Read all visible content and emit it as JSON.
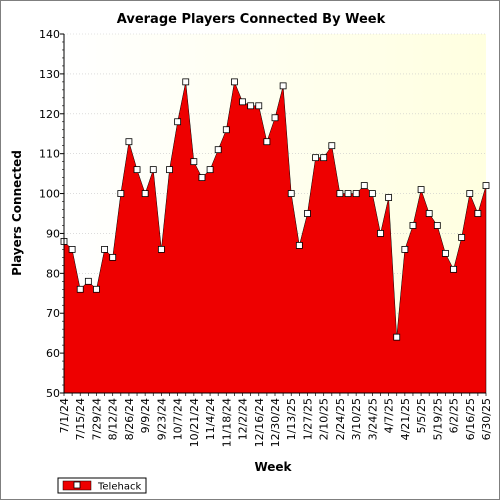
{
  "chart_data": {
    "type": "area",
    "title": "Average Players Connected By Week",
    "xlabel": "Week",
    "ylabel": "Players Connected",
    "ylim": [
      50,
      140
    ],
    "yticks": [
      50,
      60,
      70,
      80,
      90,
      100,
      110,
      120,
      130,
      140
    ],
    "grid": true,
    "legend_position": "bottom-left",
    "x": [
      "7/1/24",
      "7/8/24",
      "7/15/24",
      "7/22/24",
      "7/29/24",
      "8/5/24",
      "8/12/24",
      "8/19/24",
      "8/26/24",
      "9/2/24",
      "9/9/24",
      "9/16/24",
      "9/23/24",
      "9/30/24",
      "10/7/24",
      "10/14/24",
      "10/21/24",
      "10/28/24",
      "11/4/24",
      "11/11/24",
      "11/18/24",
      "11/25/24",
      "12/2/24",
      "12/9/24",
      "12/16/24",
      "12/23/24",
      "12/30/24",
      "1/6/25",
      "1/13/25",
      "1/20/25",
      "1/27/25",
      "2/3/25",
      "2/10/25",
      "2/17/25",
      "2/24/25",
      "3/3/25",
      "3/10/25",
      "3/17/25",
      "3/24/25",
      "3/31/25",
      "4/7/25",
      "4/14/25",
      "4/21/25",
      "4/28/25",
      "5/5/25",
      "5/12/25",
      "5/19/25",
      "5/26/25",
      "6/2/25",
      "6/9/25",
      "6/16/25",
      "6/23/25",
      "6/30/25"
    ],
    "xtick_labels": [
      "7/1/24",
      "7/15/24",
      "7/29/24",
      "8/12/24",
      "8/26/24",
      "9/9/24",
      "9/23/24",
      "10/7/24",
      "10/21/24",
      "11/4/24",
      "11/18/24",
      "12/2/24",
      "12/16/24",
      "12/30/24",
      "1/13/25",
      "1/27/25",
      "2/10/25",
      "2/24/25",
      "3/10/25",
      "3/24/25",
      "4/7/25",
      "4/21/25",
      "5/5/25",
      "5/19/25",
      "6/2/25",
      "6/16/25",
      "6/30/25"
    ],
    "series": [
      {
        "name": "Telehack",
        "color": "#ee0000",
        "values": [
          88,
          86,
          76,
          78,
          76,
          86,
          84,
          100,
          113,
          106,
          100,
          106,
          86,
          106,
          118,
          128,
          108,
          104,
          106,
          111,
          116,
          128,
          123,
          122,
          122,
          113,
          119,
          127,
          100,
          87,
          95,
          109,
          109,
          112,
          100,
          100,
          100,
          102,
          100,
          90,
          99,
          64,
          86,
          92,
          101,
          95,
          92,
          85,
          81,
          89,
          100,
          95,
          102
        ]
      }
    ]
  },
  "colors": {
    "plot_background": "#ffffe0",
    "area_fill": "#ee0000",
    "marker_fill": "#ffffff",
    "gridline": "#c8c8c8"
  }
}
